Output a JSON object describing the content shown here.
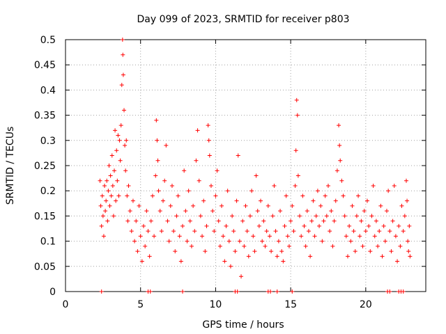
{
  "chart_data": {
    "type": "scatter",
    "title": "Day 099 of 2023, SRMTID for receiver p803",
    "xlabel": "GPS time / hours",
    "ylabel": "SRMTID / TECUs",
    "xlim": [
      0,
      24
    ],
    "ylim": [
      0,
      0.5
    ],
    "x_ticks": [
      0,
      5,
      10,
      15,
      20
    ],
    "x_tick_labels": [
      "0",
      "5",
      "10",
      "15",
      "20"
    ],
    "y_ticks": [
      0,
      0.05,
      0.1,
      0.15,
      0.2,
      0.25,
      0.3,
      0.35,
      0.4,
      0.45,
      0.5
    ],
    "y_tick_labels": [
      "0",
      "0.05",
      "0.1",
      "0.15",
      "0.2",
      "0.25",
      "0.3",
      "0.35",
      "0.4",
      "0.45",
      "0.5"
    ],
    "grid": true,
    "marker": "+",
    "series": [
      {
        "name": "SRMTID",
        "color": "#ff0000",
        "points": [
          [
            2.3,
            0.22
          ],
          [
            2.35,
            0.17
          ],
          [
            2.4,
            0.13
          ],
          [
            2.45,
            0.19
          ],
          [
            2.5,
            0.15
          ],
          [
            2.55,
            0.11
          ],
          [
            2.6,
            0.21
          ],
          [
            2.65,
            0.16
          ],
          [
            2.7,
            0.18
          ],
          [
            2.75,
            0.22
          ],
          [
            2.8,
            0.14
          ],
          [
            2.85,
            0.2
          ],
          [
            2.9,
            0.25
          ],
          [
            2.95,
            0.17
          ],
          [
            3.0,
            0.23
          ],
          [
            3.05,
            0.19
          ],
          [
            3.1,
            0.27
          ],
          [
            3.15,
            0.21
          ],
          [
            3.2,
            0.15
          ],
          [
            3.25,
            0.24
          ],
          [
            3.3,
            0.32
          ],
          [
            3.35,
            0.18
          ],
          [
            3.4,
            0.28
          ],
          [
            3.45,
            0.22
          ],
          [
            3.5,
            0.31
          ],
          [
            3.55,
            0.19
          ],
          [
            3.6,
            0.3
          ],
          [
            3.65,
            0.26
          ],
          [
            3.7,
            0.33
          ],
          [
            3.75,
            0.41
          ],
          [
            3.8,
            0.5
          ],
          [
            3.82,
            0.47
          ],
          [
            3.85,
            0.43
          ],
          [
            3.9,
            0.36
          ],
          [
            3.95,
            0.29
          ],
          [
            4.0,
            0.24
          ],
          [
            4.05,
            0.3
          ],
          [
            4.1,
            0.19
          ],
          [
            4.15,
            0.14
          ],
          [
            4.2,
            0.21
          ],
          [
            4.3,
            0.16
          ],
          [
            4.4,
            0.12
          ],
          [
            4.5,
            0.18
          ],
          [
            4.6,
            0.1
          ],
          [
            4.7,
            0.14
          ],
          [
            4.8,
            0.08
          ],
          [
            4.9,
            0.17
          ],
          [
            5.0,
            0.11
          ],
          [
            5.1,
            0.06
          ],
          [
            5.2,
            0.13
          ],
          [
            5.3,
            0.09
          ],
          [
            5.4,
            0.16
          ],
          [
            5.5,
            0.12
          ],
          [
            5.6,
            0.07
          ],
          [
            5.7,
            0.14
          ],
          [
            5.8,
            0.19
          ],
          [
            5.9,
            0.11
          ],
          [
            6.0,
            0.23
          ],
          [
            6.05,
            0.34
          ],
          [
            6.1,
            0.3
          ],
          [
            6.15,
            0.26
          ],
          [
            6.2,
            0.2
          ],
          [
            6.3,
            0.16
          ],
          [
            6.4,
            0.12
          ],
          [
            6.5,
            0.18
          ],
          [
            6.6,
            0.22
          ],
          [
            6.7,
            0.29
          ],
          [
            6.8,
            0.14
          ],
          [
            6.9,
            0.1
          ],
          [
            7.0,
            0.17
          ],
          [
            7.1,
            0.21
          ],
          [
            7.2,
            0.12
          ],
          [
            7.3,
            0.08
          ],
          [
            7.4,
            0.15
          ],
          [
            7.5,
            0.19
          ],
          [
            7.6,
            0.11
          ],
          [
            7.7,
            0.06
          ],
          [
            7.8,
            0.13
          ],
          [
            7.9,
            0.24
          ],
          [
            8.0,
            0.16
          ],
          [
            8.1,
            0.1
          ],
          [
            8.2,
            0.2
          ],
          [
            8.3,
            0.14
          ],
          [
            8.4,
            0.09
          ],
          [
            8.5,
            0.17
          ],
          [
            8.6,
            0.12
          ],
          [
            8.7,
            0.26
          ],
          [
            8.8,
            0.32
          ],
          [
            8.9,
            0.22
          ],
          [
            9.0,
            0.15
          ],
          [
            9.1,
            0.11
          ],
          [
            9.2,
            0.18
          ],
          [
            9.3,
            0.08
          ],
          [
            9.4,
            0.13
          ],
          [
            9.5,
            0.33
          ],
          [
            9.55,
            0.3
          ],
          [
            9.6,
            0.27
          ],
          [
            9.7,
            0.21
          ],
          [
            9.8,
            0.16
          ],
          [
            9.9,
            0.12
          ],
          [
            10.0,
            0.19
          ],
          [
            10.1,
            0.24
          ],
          [
            10.2,
            0.14
          ],
          [
            10.3,
            0.09
          ],
          [
            10.4,
            0.17
          ],
          [
            10.5,
            0.11
          ],
          [
            10.6,
            0.06
          ],
          [
            10.7,
            0.13
          ],
          [
            10.8,
            0.2
          ],
          [
            10.9,
            0.1
          ],
          [
            11.0,
            0.05
          ],
          [
            11.1,
            0.15
          ],
          [
            11.2,
            0.12
          ],
          [
            11.3,
            0.08
          ],
          [
            11.4,
            0.18
          ],
          [
            11.5,
            0.27
          ],
          [
            11.6,
            0.1
          ],
          [
            11.7,
            0.03
          ],
          [
            11.8,
            0.14
          ],
          [
            11.9,
            0.09
          ],
          [
            12.0,
            0.17
          ],
          [
            12.1,
            0.12
          ],
          [
            12.2,
            0.07
          ],
          [
            12.3,
            0.15
          ],
          [
            12.4,
            0.2
          ],
          [
            12.5,
            0.11
          ],
          [
            12.6,
            0.08
          ],
          [
            12.7,
            0.23
          ],
          [
            12.8,
            0.16
          ],
          [
            12.9,
            0.13
          ],
          [
            13.0,
            0.18
          ],
          [
            13.1,
            0.1
          ],
          [
            13.2,
            0.14
          ],
          [
            13.3,
            0.09
          ],
          [
            13.4,
            0.12
          ],
          [
            13.5,
            0.17
          ],
          [
            13.6,
            0.11
          ],
          [
            13.7,
            0.08
          ],
          [
            13.8,
            0.15
          ],
          [
            13.9,
            0.21
          ],
          [
            14.0,
            0.12
          ],
          [
            14.1,
            0.07
          ],
          [
            14.2,
            0.1
          ],
          [
            14.3,
            0.16
          ],
          [
            14.4,
            0.08
          ],
          [
            14.5,
            0.06
          ],
          [
            14.6,
            0.13
          ],
          [
            14.7,
            0.19
          ],
          [
            14.8,
            0.11
          ],
          [
            14.9,
            0.09
          ],
          [
            15.0,
            0.14
          ],
          [
            15.1,
            0.17
          ],
          [
            15.2,
            0.12
          ],
          [
            15.3,
            0.21
          ],
          [
            15.35,
            0.28
          ],
          [
            15.4,
            0.38
          ],
          [
            15.45,
            0.35
          ],
          [
            15.5,
            0.23
          ],
          [
            15.6,
            0.15
          ],
          [
            15.7,
            0.11
          ],
          [
            15.8,
            0.19
          ],
          [
            15.9,
            0.13
          ],
          [
            16.0,
            0.09
          ],
          [
            16.1,
            0.16
          ],
          [
            16.2,
            0.12
          ],
          [
            16.3,
            0.07
          ],
          [
            16.4,
            0.14
          ],
          [
            16.5,
            0.18
          ],
          [
            16.6,
            0.11
          ],
          [
            16.7,
            0.15
          ],
          [
            16.8,
            0.2
          ],
          [
            16.9,
            0.13
          ],
          [
            17.0,
            0.17
          ],
          [
            17.1,
            0.1
          ],
          [
            17.2,
            0.14
          ],
          [
            17.3,
            0.19
          ],
          [
            17.4,
            0.15
          ],
          [
            17.5,
            0.21
          ],
          [
            17.6,
            0.12
          ],
          [
            17.7,
            0.16
          ],
          [
            17.8,
            0.09
          ],
          [
            17.9,
            0.14
          ],
          [
            18.0,
            0.18
          ],
          [
            18.1,
            0.24
          ],
          [
            18.2,
            0.33
          ],
          [
            18.25,
            0.29
          ],
          [
            18.3,
            0.26
          ],
          [
            18.4,
            0.22
          ],
          [
            18.5,
            0.19
          ],
          [
            18.6,
            0.15
          ],
          [
            18.7,
            0.11
          ],
          [
            18.8,
            0.07
          ],
          [
            18.9,
            0.13
          ],
          [
            19.0,
            0.1
          ],
          [
            19.1,
            0.17
          ],
          [
            19.2,
            0.12
          ],
          [
            19.3,
            0.08
          ],
          [
            19.4,
            0.15
          ],
          [
            19.5,
            0.19
          ],
          [
            19.6,
            0.11
          ],
          [
            19.7,
            0.14
          ],
          [
            19.8,
            0.09
          ],
          [
            19.9,
            0.16
          ],
          [
            20.0,
            0.12
          ],
          [
            20.1,
            0.18
          ],
          [
            20.2,
            0.13
          ],
          [
            20.3,
            0.08
          ],
          [
            20.4,
            0.15
          ],
          [
            20.5,
            0.21
          ],
          [
            20.6,
            0.11
          ],
          [
            20.7,
            0.14
          ],
          [
            20.8,
            0.09
          ],
          [
            20.9,
            0.12
          ],
          [
            21.0,
            0.17
          ],
          [
            21.1,
            0.07
          ],
          [
            21.2,
            0.13
          ],
          [
            21.3,
            0.1
          ],
          [
            21.4,
            0.16
          ],
          [
            21.5,
            0.2
          ],
          [
            21.6,
            0.12
          ],
          [
            21.7,
            0.08
          ],
          [
            21.8,
            0.14
          ],
          [
            21.9,
            0.21
          ],
          [
            22.0,
            0.11
          ],
          [
            22.1,
            0.06
          ],
          [
            22.2,
            0.13
          ],
          [
            22.3,
            0.09
          ],
          [
            22.4,
            0.17
          ],
          [
            22.5,
            0.12
          ],
          [
            22.6,
            0.15
          ],
          [
            22.7,
            0.22
          ],
          [
            22.75,
            0.18
          ],
          [
            22.8,
            0.1
          ],
          [
            22.85,
            0.08
          ],
          [
            22.9,
            0.13
          ],
          [
            22.95,
            0.07
          ],
          [
            2.4,
            0.0
          ],
          [
            5.5,
            0.0
          ],
          [
            5.65,
            0.0
          ],
          [
            7.8,
            0.0
          ],
          [
            11.3,
            0.0
          ],
          [
            11.45,
            0.0
          ],
          [
            13.5,
            0.0
          ],
          [
            13.65,
            0.0
          ],
          [
            14.1,
            0.0
          ],
          [
            15.1,
            0.0
          ],
          [
            21.45,
            0.0
          ],
          [
            21.6,
            0.0
          ],
          [
            22.2,
            0.0
          ],
          [
            22.35,
            0.0
          ],
          [
            22.5,
            0.0
          ]
        ]
      }
    ]
  }
}
